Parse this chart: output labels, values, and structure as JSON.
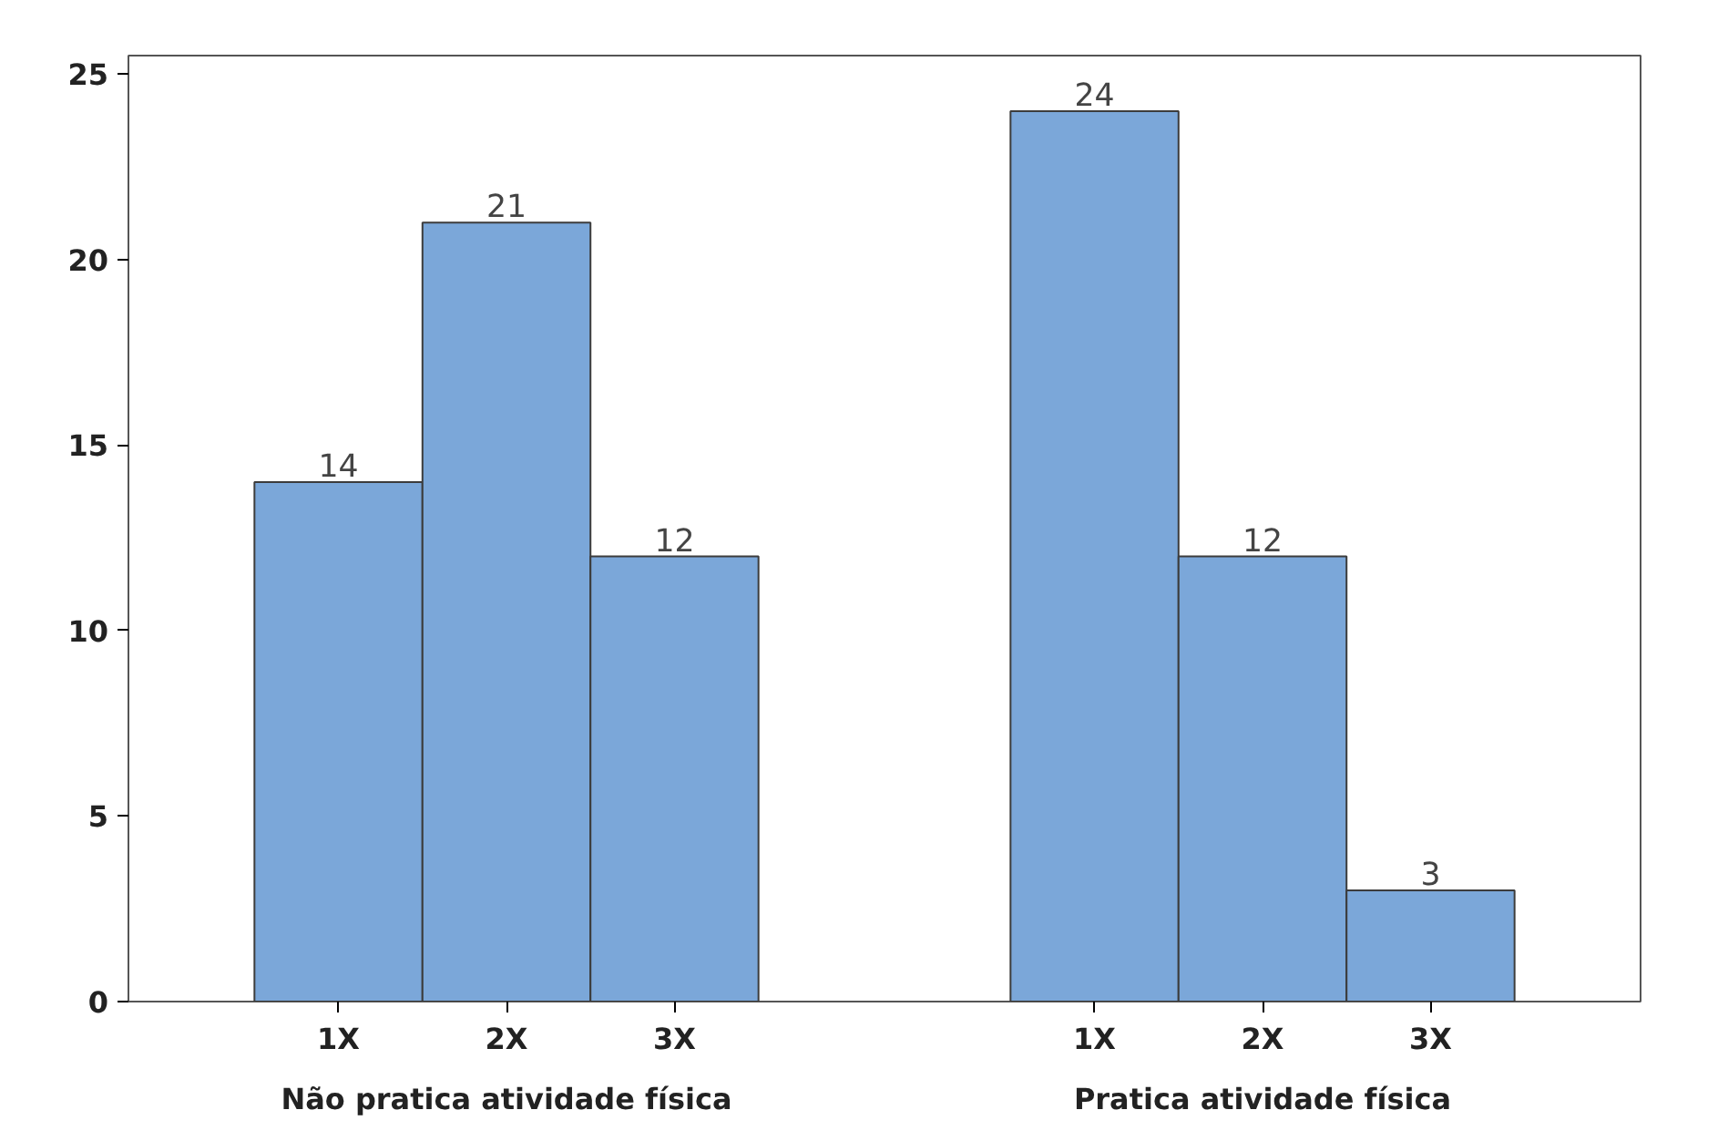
{
  "chart_data": {
    "type": "bar",
    "categories": [
      "1X",
      "2X",
      "3X",
      "1X",
      "2X",
      "3X"
    ],
    "values": [
      14,
      21,
      12,
      24,
      12,
      3
    ],
    "color": "#7ba7d9",
    "ylim": [
      0,
      25.5
    ],
    "yticks": [
      0,
      5,
      10,
      15,
      20,
      25
    ],
    "data_labels": true,
    "grid": false,
    "annotations": [
      "Não pratica atividade física",
      "Pratica atividade física"
    ]
  }
}
